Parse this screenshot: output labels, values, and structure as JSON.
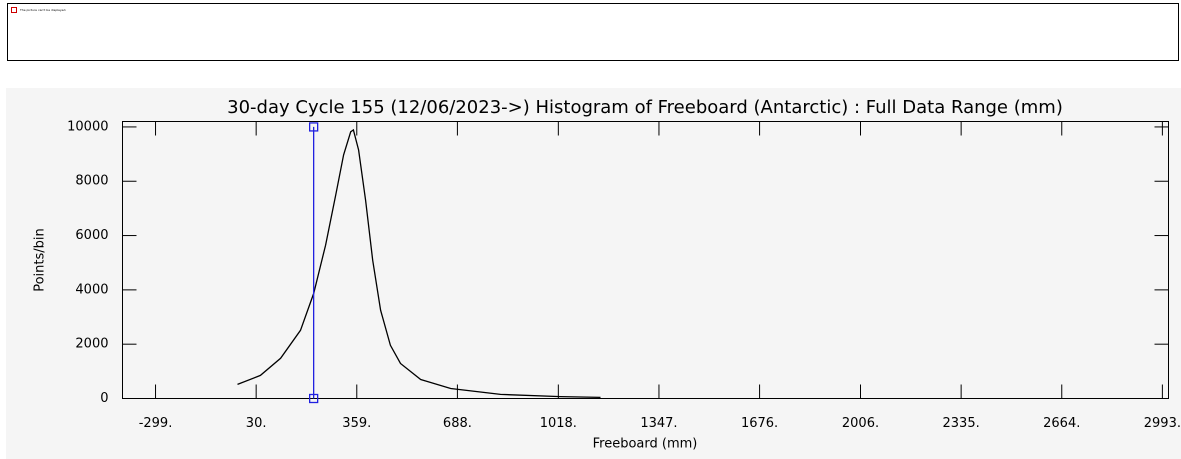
{
  "broken_image": {
    "text": "The picture can't be displayed."
  },
  "chart_data": {
    "type": "line",
    "title": "30-day Cycle 155 (12/06/2023->) Histogram of Freeboard (Antarctic) :  Full Data Range (mm)",
    "x_label": "Freeboard (mm)",
    "y_label": "Points/bin",
    "x": [
      -31,
      44,
      110,
      175,
      218,
      257,
      290,
      316,
      339,
      348,
      365,
      388,
      411,
      437,
      469,
      502,
      568,
      666,
      829,
      1025,
      1156
    ],
    "values": [
      520,
      850,
      1480,
      2510,
      3870,
      5650,
      7490,
      8970,
      9820,
      9890,
      9150,
      7300,
      5090,
      3250,
      1960,
      1290,
      700,
      370,
      150,
      70,
      40
    ],
    "color": "#000000",
    "marker_x": 218,
    "marker_color": "#2020e0",
    "xlim": [
      -407,
      3013
    ],
    "ylim": [
      0,
      10200
    ],
    "xticks": [
      {
        "value": -299,
        "label": "-299."
      },
      {
        "value": 30,
        "label": "30."
      },
      {
        "value": 359,
        "label": "359."
      },
      {
        "value": 688,
        "label": "688."
      },
      {
        "value": 1018,
        "label": "1018."
      },
      {
        "value": 1347,
        "label": "1347."
      },
      {
        "value": 1676,
        "label": "1676."
      },
      {
        "value": 2006,
        "label": "2006."
      },
      {
        "value": 2335,
        "label": "2335."
      },
      {
        "value": 2664,
        "label": "2664."
      },
      {
        "value": 2993,
        "label": "2993."
      }
    ],
    "yticks": [
      0,
      2000,
      4000,
      6000,
      8000,
      10000
    ]
  }
}
